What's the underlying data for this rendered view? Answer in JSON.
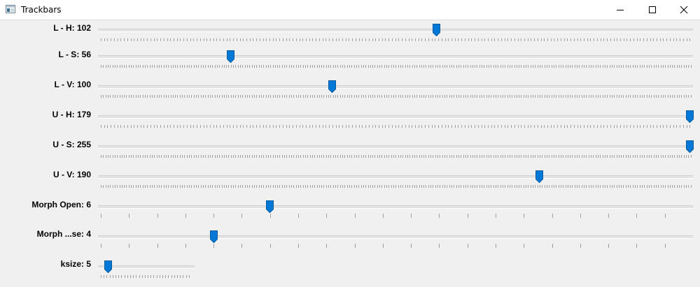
{
  "window": {
    "title": "Trackbars",
    "icon": "opencv-window-icon",
    "controls": [
      "minimize-icon",
      "maximize-icon",
      "close-icon"
    ]
  },
  "accent_color": "#0078d7",
  "trackbars": [
    {
      "id": "lh",
      "label": "L - H: 102",
      "value": 102,
      "max": 179
    },
    {
      "id": "ls",
      "label": "L - S: 56",
      "value": 56,
      "max": 255
    },
    {
      "id": "lv",
      "label": "L - V: 100",
      "value": 100,
      "max": 255
    },
    {
      "id": "uh",
      "label": "U - H: 179",
      "value": 179,
      "max": 179
    },
    {
      "id": "us",
      "label": "U - S: 255",
      "value": 255,
      "max": 255
    },
    {
      "id": "uv",
      "label": "U - V: 190",
      "value": 190,
      "max": 255
    },
    {
      "id": "morph-open",
      "label": "Morph Open: 6",
      "value": 6,
      "max": 21
    },
    {
      "id": "morph-close",
      "label": "Morph ...se: 4",
      "value": 4,
      "max": 21
    },
    {
      "id": "ksize",
      "label": "ksize: 5",
      "value": 5,
      "max": 31
    }
  ]
}
